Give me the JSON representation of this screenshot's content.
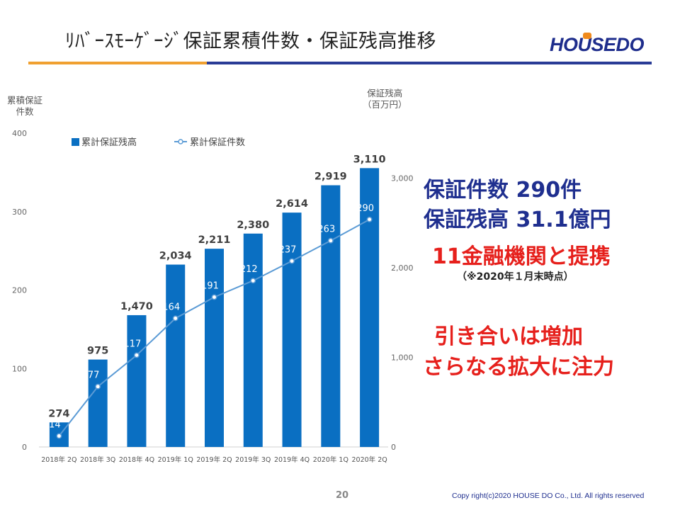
{
  "header": {
    "title": "ﾘﾊﾞｰｽﾓｰｹﾞｰｼﾞ保証累積件数・保証残高推移",
    "logo_text": "HOUSEDO"
  },
  "axes": {
    "left_title_line1": "累積保証",
    "left_title_line2": "件数",
    "right_title_line1": "保証残高",
    "right_title_line2": "（百万円）"
  },
  "chart_data": {
    "type": "bar",
    "categories": [
      "2018年 2Q",
      "2018年 3Q",
      "2018年 4Q",
      "2019年 1Q",
      "2019年 2Q",
      "2019年 3Q",
      "2019年 4Q",
      "2020年 1Q",
      "2020年 2Q"
    ],
    "series": [
      {
        "name": "累計保証残高",
        "type": "bar",
        "axis": "right",
        "color": "#0a6fc2",
        "values": [
          274,
          975,
          1470,
          2034,
          2211,
          2380,
          2614,
          2919,
          3110
        ],
        "labels": [
          "274",
          "975",
          "1,470",
          "2,034",
          "2,211",
          "2,380",
          "2,614",
          "2,919",
          "3,110"
        ]
      },
      {
        "name": "累計保証件数",
        "type": "line",
        "axis": "left",
        "color": "#5b9bd5",
        "values": [
          14,
          77,
          117,
          164,
          191,
          212,
          237,
          263,
          290
        ],
        "labels": [
          "14",
          "77",
          "117",
          "164",
          "191",
          "212",
          "237",
          "263",
          "290"
        ]
      }
    ],
    "left_axis": {
      "ylim": [
        0,
        400
      ],
      "ticks": [
        "0",
        "100",
        "200",
        "300",
        "400"
      ]
    },
    "right_axis": {
      "ylim": [
        0,
        3500
      ],
      "ticks": [
        "0",
        "1,000",
        "2,000",
        "3,000"
      ]
    },
    "legend_position": "top-left",
    "grid": false
  },
  "highlights": {
    "count": "保証件数  290件",
    "balance": "保証残高  31.1億円",
    "partners": "11金融機関と提携",
    "note": "（※2020年１月末時点）",
    "message_line1": "引き合いは増加",
    "message_line2": "さらなる拡大に注力"
  },
  "footer": {
    "page_number": "20",
    "copyright": "Copy right(c)2020  HOUSE  DO Co., Ltd.  All rights reserved"
  }
}
